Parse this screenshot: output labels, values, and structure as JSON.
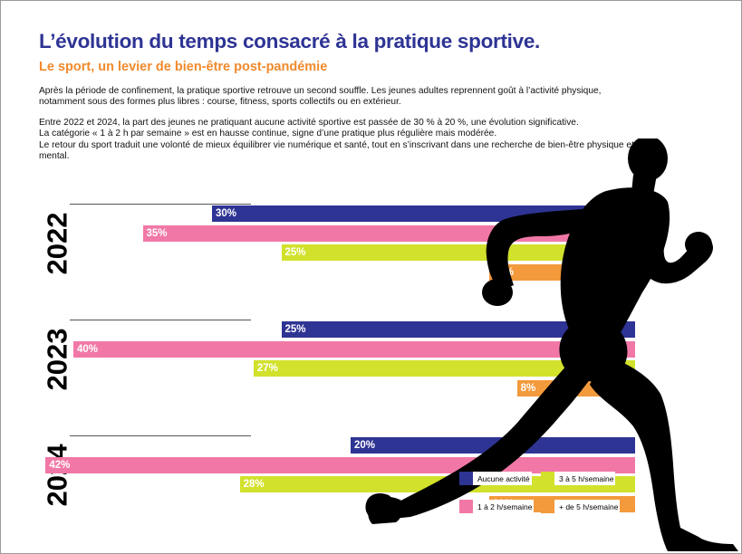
{
  "header": {
    "title": "L’évolution du temps consacré à la pratique sportive.",
    "subtitle": "Le sport, un levier de bien-être post-pandémie"
  },
  "intro": {
    "p1": "Après la période de confinement, la pratique sportive retrouve un second souffle. Les jeunes adultes reprennent goût à l’activité physique, notamment sous des formes plus libres : course, fitness, sports collectifs ou en extérieur.",
    "p2": "Entre 2022 et 2024, la part des jeunes ne pratiquant aucune activité sportive est passée de 30 % à 20 %, une évolution significative.",
    "p3": "La catégorie « 1 à 2 h par semaine » est en hausse continue, signe d’une pratique plus régulière mais modérée.",
    "p4": "Le retour du sport traduit une volonté de mieux équilibrer vie numérique et santé, tout en s’inscrivant dans une recherche de bien-être physique et mental."
  },
  "colors": {
    "aucune": "#2e3494",
    "un_deux": "#f178a6",
    "trois_cinq": "#d2e12c",
    "plus_cinq": "#f39a3c",
    "title": "#2e3494",
    "subtitle": "#f08a2c",
    "silhouette": "#000000"
  },
  "chart_data": {
    "type": "bar",
    "orientation": "horizontal",
    "title": "",
    "xlabel": "",
    "ylabel": "",
    "unit": "%",
    "legend_position": "bottom-right",
    "groups": [
      "2022",
      "2023",
      "2024"
    ],
    "series": [
      {
        "name": "Aucune activité",
        "color": "#2e3494",
        "values": [
          30,
          25,
          20
        ],
        "labels": [
          "30%",
          "25%",
          "20%"
        ]
      },
      {
        "name": "1 à 2 h/semaine",
        "color": "#f178a6",
        "values": [
          35,
          40,
          42
        ],
        "labels": [
          "35%",
          "40%",
          "42%"
        ]
      },
      {
        "name": "3 à 5 h/semaine",
        "color": "#d2e12c",
        "values": [
          25,
          27,
          28
        ],
        "labels": [
          "25%",
          "27%",
          "28%"
        ]
      },
      {
        "name": "+ de 5 h/semaine",
        "color": "#f39a3c",
        "values": [
          10,
          8,
          10
        ],
        "labels": [
          "10%",
          "8%",
          "10%"
        ]
      }
    ]
  },
  "legend": {
    "items": [
      {
        "label": "Aucune activité",
        "color": "#2e3494"
      },
      {
        "label": "3 à 5 h/semaine",
        "color": "#d2e12c"
      },
      {
        "label": "1 à 2 h/semaine",
        "color": "#f178a6"
      },
      {
        "label": "+ de 5 h/semaine",
        "color": "#f39a3c"
      }
    ]
  }
}
